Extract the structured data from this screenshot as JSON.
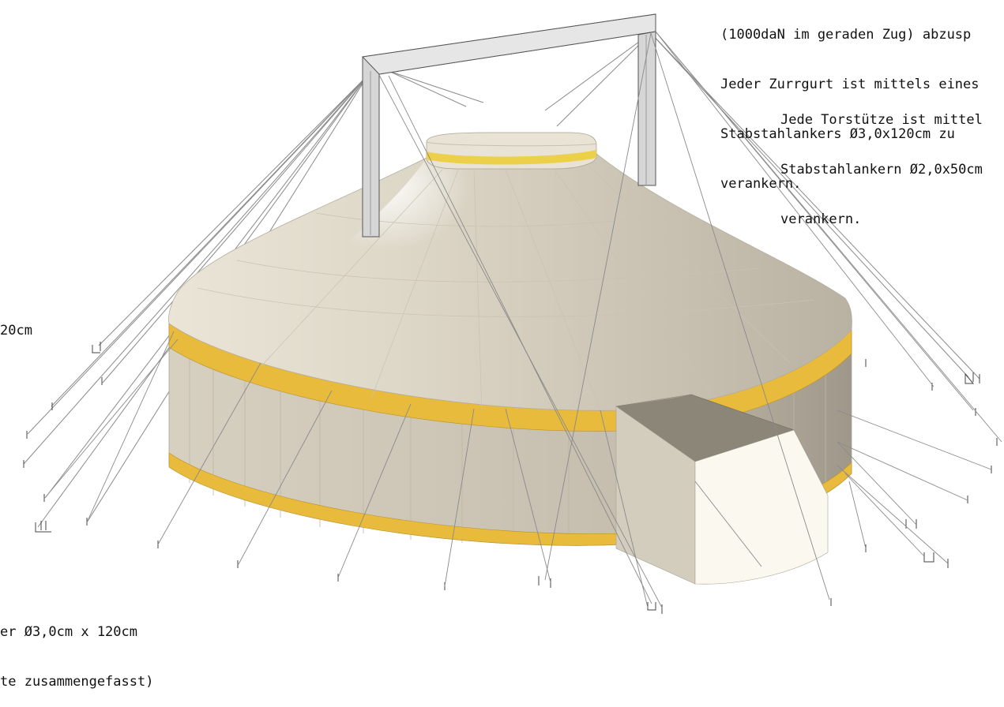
{
  "annotations": {
    "top_right_lines": [
      "(1000daN im geraden Zug) abzusp",
      "Jeder Zurrgurt ist mittels eines",
      "Stabstahlankers Ø3,0x120cm zu",
      "verankern."
    ],
    "top_right_indented_lines": [
      "Jede Torstütze ist mittel",
      "Stabstahlankern Ø2,0x50cm",
      "verankern."
    ],
    "left_fragment": "20cm",
    "bottom_left_lines": [
      "er Ø3,0cm x 120cm",
      "te zusammengefasst)"
    ]
  },
  "colors": {
    "canvas": "#cdc7bb",
    "stripe": "#e8bb3c",
    "frame": "#d6d6d6",
    "frame_edge": "#555555",
    "cable": "#8a8a8a",
    "entrance_front": "#fbf9ef",
    "entrance_roof": "#8c8678"
  }
}
